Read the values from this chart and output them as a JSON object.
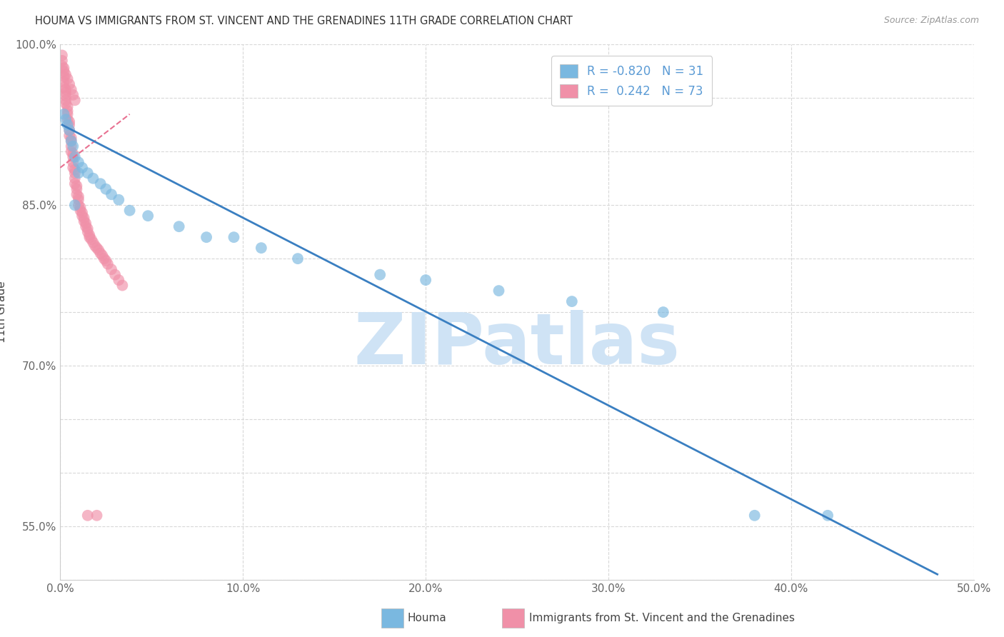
{
  "title": "HOUMA VS IMMIGRANTS FROM ST. VINCENT AND THE GRENADINES 11TH GRADE CORRELATION CHART",
  "source": "Source: ZipAtlas.com",
  "ylabel": "11th Grade",
  "xlim": [
    0.0,
    0.5
  ],
  "ylim": [
    0.5,
    1.0
  ],
  "xticks": [
    0.0,
    0.1,
    0.2,
    0.3,
    0.4,
    0.5
  ],
  "yticks": [
    0.55,
    0.7,
    0.85,
    1.0
  ],
  "ytick_labels": [
    "55.0%",
    "70.0%",
    "85.0%",
    "100.0%"
  ],
  "yticks_minor": [
    0.5,
    0.55,
    0.6,
    0.65,
    0.7,
    0.75,
    0.8,
    0.85,
    0.9,
    0.95,
    1.0
  ],
  "xtick_labels": [
    "0.0%",
    "10.0%",
    "20.0%",
    "30.0%",
    "40.0%",
    "50.0%"
  ],
  "houma_color": "#7ab8e0",
  "immigrant_color": "#f090a8",
  "houma_R": -0.82,
  "houma_N": 31,
  "immigrant_R": 0.242,
  "immigrant_N": 73,
  "legend_label_houma": "Houma",
  "legend_label_immigrant": "Immigrants from St. Vincent and the Grenadines",
  "houma_scatter_x": [
    0.002,
    0.003,
    0.004,
    0.005,
    0.006,
    0.007,
    0.008,
    0.01,
    0.012,
    0.015,
    0.018,
    0.022,
    0.025,
    0.028,
    0.032,
    0.038,
    0.048,
    0.065,
    0.08,
    0.095,
    0.11,
    0.13,
    0.175,
    0.2,
    0.24,
    0.28,
    0.33,
    0.008,
    0.01,
    0.38,
    0.42
  ],
  "houma_scatter_y": [
    0.935,
    0.93,
    0.925,
    0.92,
    0.91,
    0.905,
    0.895,
    0.89,
    0.885,
    0.88,
    0.875,
    0.87,
    0.865,
    0.86,
    0.855,
    0.845,
    0.84,
    0.83,
    0.82,
    0.82,
    0.81,
    0.8,
    0.785,
    0.78,
    0.77,
    0.76,
    0.75,
    0.85,
    0.88,
    0.56,
    0.56
  ],
  "immigrant_scatter_x": [
    0.001,
    0.001,
    0.002,
    0.002,
    0.002,
    0.002,
    0.003,
    0.003,
    0.003,
    0.003,
    0.003,
    0.004,
    0.004,
    0.004,
    0.004,
    0.005,
    0.005,
    0.005,
    0.005,
    0.006,
    0.006,
    0.006,
    0.006,
    0.007,
    0.007,
    0.007,
    0.007,
    0.008,
    0.008,
    0.008,
    0.008,
    0.009,
    0.009,
    0.009,
    0.01,
    0.01,
    0.01,
    0.011,
    0.011,
    0.012,
    0.012,
    0.013,
    0.013,
    0.014,
    0.014,
    0.015,
    0.015,
    0.016,
    0.016,
    0.017,
    0.018,
    0.019,
    0.02,
    0.021,
    0.022,
    0.023,
    0.024,
    0.025,
    0.026,
    0.028,
    0.03,
    0.032,
    0.034,
    0.001,
    0.002,
    0.003,
    0.004,
    0.005,
    0.006,
    0.007,
    0.008,
    0.015,
    0.02
  ],
  "immigrant_scatter_y": [
    0.99,
    0.98,
    0.975,
    0.97,
    0.965,
    0.96,
    0.958,
    0.955,
    0.952,
    0.948,
    0.945,
    0.942,
    0.938,
    0.935,
    0.93,
    0.928,
    0.925,
    0.92,
    0.915,
    0.913,
    0.91,
    0.905,
    0.9,
    0.898,
    0.895,
    0.89,
    0.885,
    0.883,
    0.88,
    0.875,
    0.87,
    0.868,
    0.865,
    0.86,
    0.858,
    0.855,
    0.85,
    0.848,
    0.845,
    0.843,
    0.84,
    0.838,
    0.835,
    0.833,
    0.83,
    0.828,
    0.825,
    0.822,
    0.82,
    0.818,
    0.815,
    0.812,
    0.81,
    0.808,
    0.805,
    0.803,
    0.8,
    0.798,
    0.795,
    0.79,
    0.785,
    0.78,
    0.775,
    0.985,
    0.978,
    0.972,
    0.968,
    0.963,
    0.958,
    0.953,
    0.948,
    0.56,
    0.56
  ],
  "houma_line_x": [
    0.001,
    0.48
  ],
  "houma_line_y": [
    0.925,
    0.505
  ],
  "immigrant_line_x": [
    0.0,
    0.038
  ],
  "immigrant_line_y": [
    0.885,
    0.935
  ],
  "watermark": "ZIPatlas",
  "watermark_color": "#cfe3f5",
  "grid_color": "#d8d8d8",
  "background_color": "#ffffff",
  "houma_line_color": "#3a7fc1",
  "immigrant_line_color": "#e87090"
}
